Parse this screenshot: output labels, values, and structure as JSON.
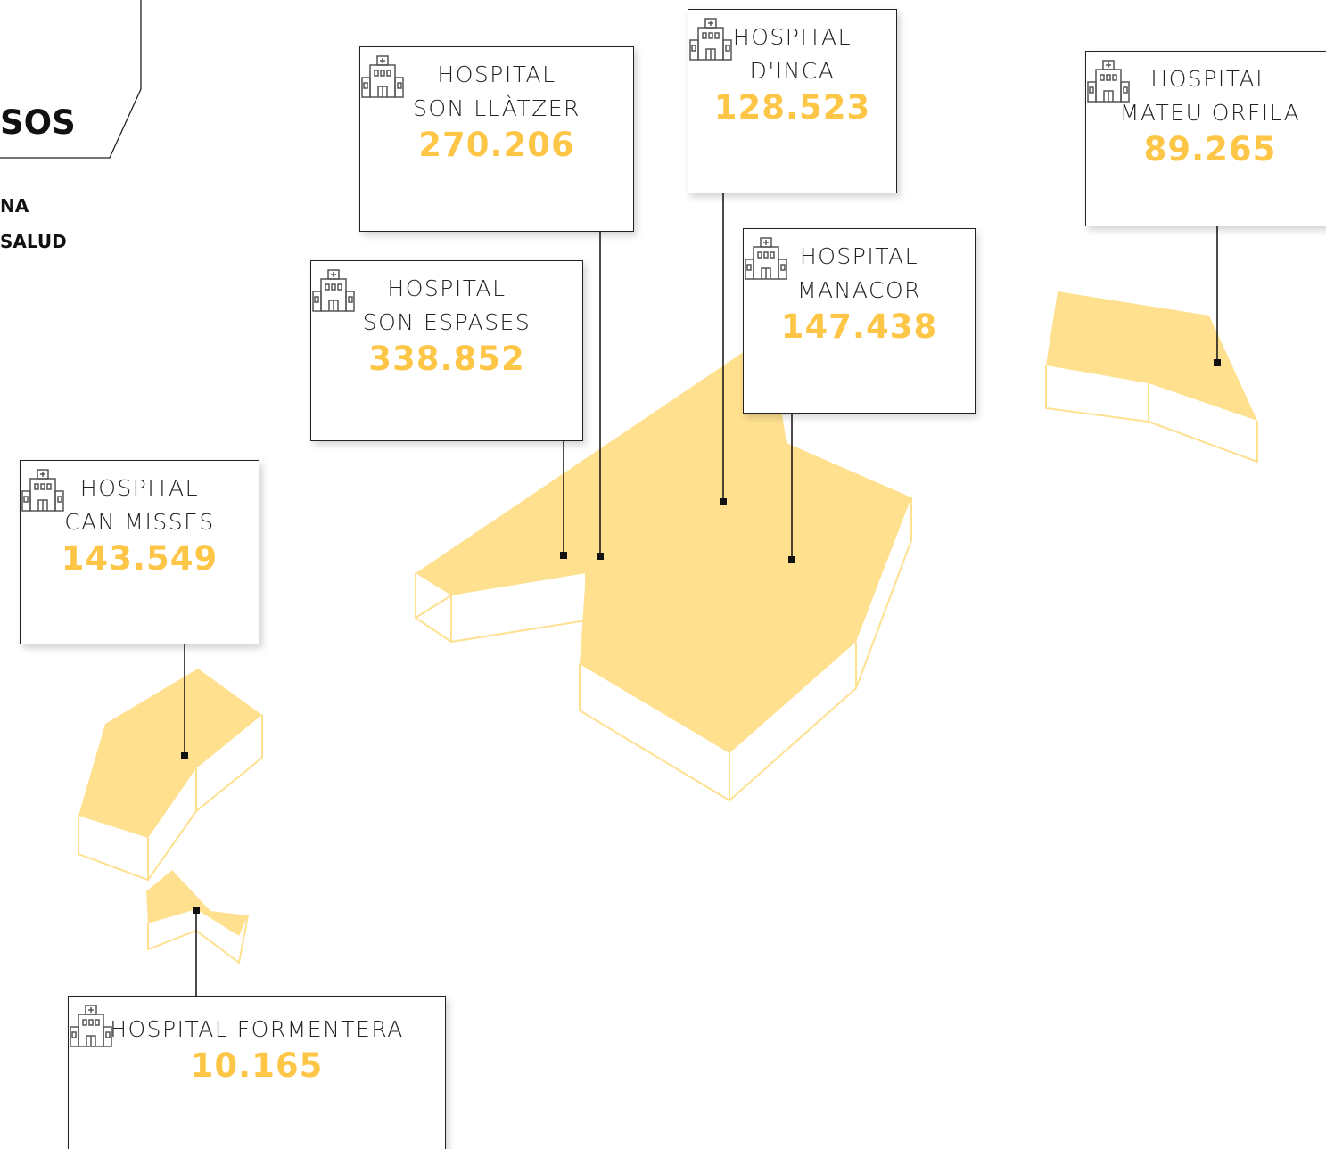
{
  "header": {
    "title": "SOS",
    "lines": [
      "NA",
      "SALUD"
    ]
  },
  "hospitals": [
    {
      "name": [
        "HOSPITAL",
        "SON LLÀTZER"
      ],
      "value": "270.206"
    },
    {
      "name": [
        "HOSPITAL",
        "D'INCA"
      ],
      "value": "128.523"
    },
    {
      "name": [
        "HOSPITAL",
        "MATEU ORFILA"
      ],
      "value": "89.265"
    },
    {
      "name": [
        "HOSPITAL",
        "SON ESPASES"
      ],
      "value": "338.852"
    },
    {
      "name": [
        "HOSPITAL",
        "MANACOR"
      ],
      "value": "147.438"
    },
    {
      "name": [
        "HOSPITAL",
        "CAN MISSES"
      ],
      "value": "143.549"
    },
    {
      "name": [
        "HOSPITAL FORMENTERA"
      ],
      "value": "10.165"
    }
  ]
}
